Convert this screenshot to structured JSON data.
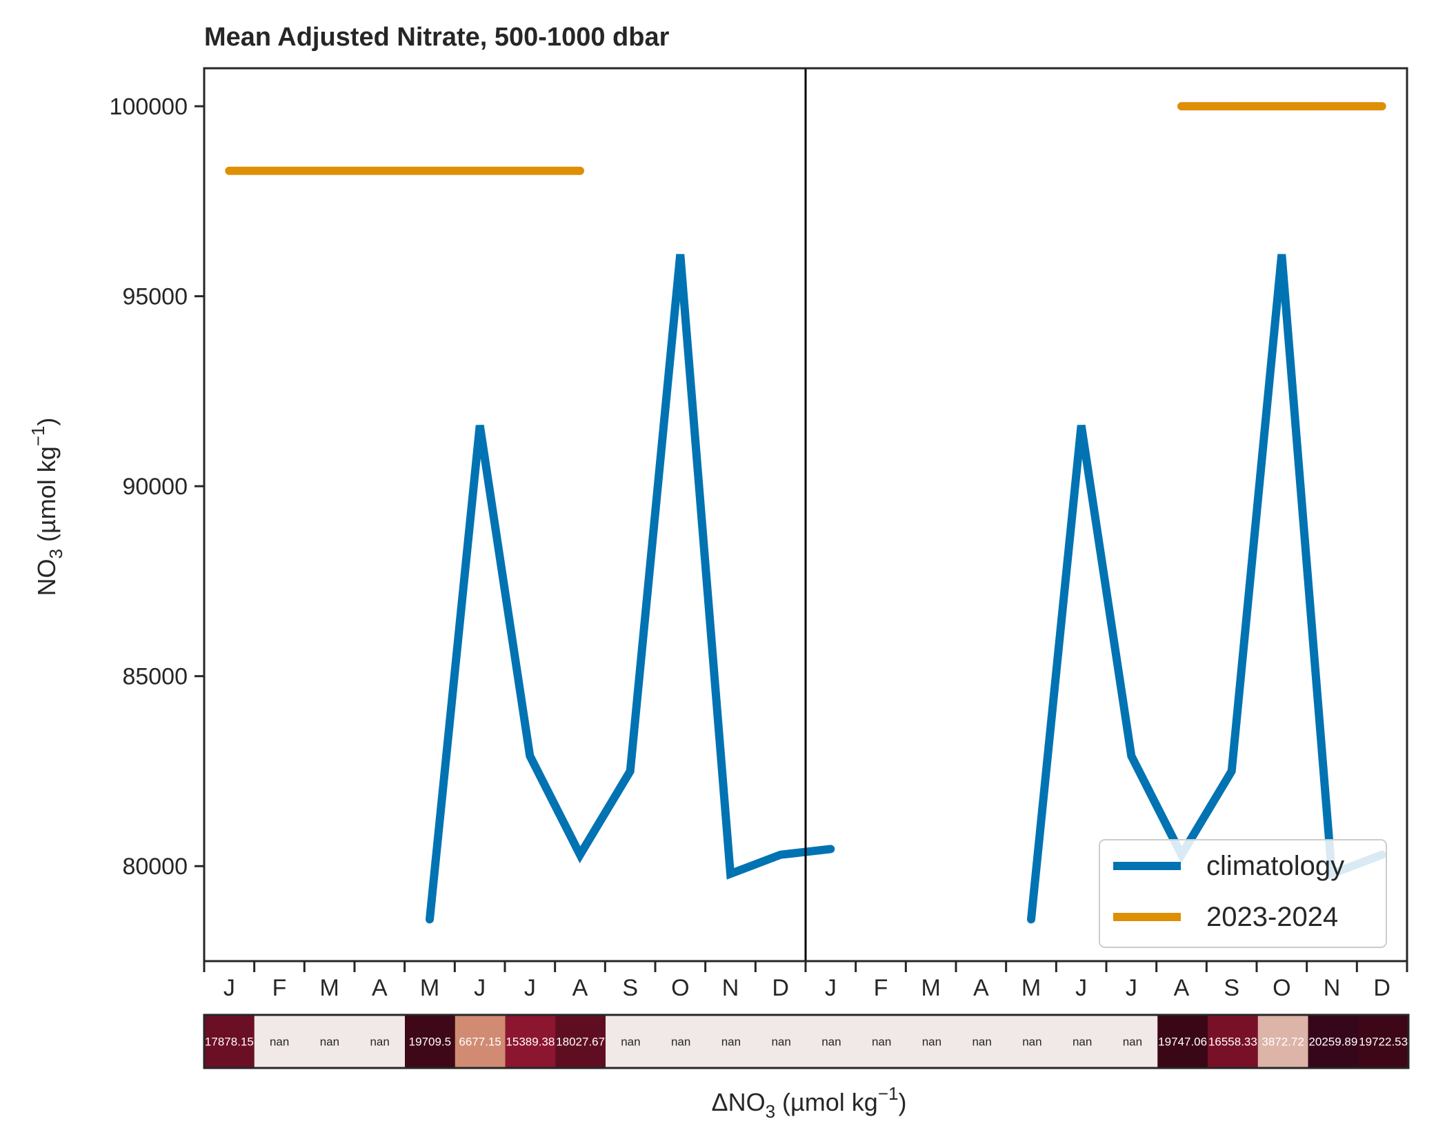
{
  "chart_data": {
    "type": "line",
    "title": "Mean Adjusted Nitrate, 500-1000 dbar",
    "ylabel": "NO3 (µmol kg−1)",
    "ylabel_parts": {
      "base": "NO",
      "sub": "3",
      "mid": " (µmol kg",
      "sup": "−1",
      "end": ")"
    },
    "xlabel": "ΔNO3 (µmol kg−1)",
    "xlabel_parts": {
      "base": "ΔNO",
      "sub": "3",
      "mid": " (µmol kg",
      "sup": "−1",
      "end": ")"
    },
    "ylim": [
      77500,
      101000
    ],
    "yticks": [
      80000,
      85000,
      90000,
      95000,
      100000
    ],
    "ytick_labels": [
      "80000",
      "85000",
      "90000",
      "95000",
      "100000"
    ],
    "xlim": [
      0,
      24
    ],
    "month_labels": [
      "J",
      "F",
      "M",
      "A",
      "M",
      "J",
      "J",
      "A",
      "S",
      "O",
      "N",
      "D",
      "J",
      "F",
      "M",
      "A",
      "M",
      "J",
      "J",
      "A",
      "S",
      "O",
      "N",
      "D"
    ],
    "year_divider": 12,
    "series": [
      {
        "name": "climatology",
        "color": "#0173b2",
        "points": [
          [
            4.5,
            78600
          ],
          [
            5.5,
            91600
          ],
          [
            6.5,
            82900
          ],
          [
            7.5,
            80300
          ],
          [
            8.5,
            82500
          ],
          [
            9.5,
            96100
          ],
          [
            10.5,
            79800
          ],
          [
            11.5,
            80300
          ],
          [
            12.5,
            80450
          ]
        ]
      },
      {
        "name": "climatology",
        "color": "#0173b2",
        "points": [
          [
            16.5,
            78600
          ],
          [
            17.5,
            91600
          ],
          [
            18.5,
            82900
          ],
          [
            19.5,
            80300
          ],
          [
            20.5,
            82500
          ],
          [
            21.5,
            96100
          ],
          [
            22.5,
            79800
          ],
          [
            23.5,
            80300
          ]
        ]
      },
      {
        "name": "2023-2024",
        "color": "#de8f05",
        "points": [
          [
            0.5,
            98300
          ],
          [
            7.5,
            98300
          ]
        ]
      },
      {
        "name": "2023-2024",
        "color": "#de8f05",
        "points": [
          [
            19.5,
            100000
          ],
          [
            23.5,
            100000
          ]
        ]
      }
    ],
    "legend": {
      "position": "lower-right",
      "entries": [
        {
          "label": "climatology",
          "color": "#0173b2"
        },
        {
          "label": "2023-2024",
          "color": "#de8f05"
        }
      ]
    },
    "anomaly_strip": {
      "cells": [
        {
          "text": "17878.15",
          "color": "#6b0f25",
          "text_color": "#ffffff"
        },
        {
          "text": "nan",
          "color": "#f1e8e8",
          "text_color": "#262626"
        },
        {
          "text": "nan",
          "color": "#f1e8e8",
          "text_color": "#262626"
        },
        {
          "text": "nan",
          "color": "#f1e8e8",
          "text_color": "#262626"
        },
        {
          "text": "19709.5",
          "color": "#3e0818",
          "text_color": "#ffffff"
        },
        {
          "text": "6677.15",
          "color": "#d08b72",
          "text_color": "#ffffff"
        },
        {
          "text": "15389.38",
          "color": "#8c1530",
          "text_color": "#ffffff"
        },
        {
          "text": "18027.67",
          "color": "#5f0e22",
          "text_color": "#ffffff"
        },
        {
          "text": "nan",
          "color": "#f1e8e8",
          "text_color": "#262626"
        },
        {
          "text": "nan",
          "color": "#f1e8e8",
          "text_color": "#262626"
        },
        {
          "text": "nan",
          "color": "#f1e8e8",
          "text_color": "#262626"
        },
        {
          "text": "nan",
          "color": "#f1e8e8",
          "text_color": "#262626"
        },
        {
          "text": "nan",
          "color": "#f1e8e8",
          "text_color": "#262626"
        },
        {
          "text": "nan",
          "color": "#f1e8e8",
          "text_color": "#262626"
        },
        {
          "text": "nan",
          "color": "#f1e8e8",
          "text_color": "#262626"
        },
        {
          "text": "nan",
          "color": "#f1e8e8",
          "text_color": "#262626"
        },
        {
          "text": "nan",
          "color": "#f1e8e8",
          "text_color": "#262626"
        },
        {
          "text": "nan",
          "color": "#f1e8e8",
          "text_color": "#262626"
        },
        {
          "text": "nan",
          "color": "#f1e8e8",
          "text_color": "#262626"
        },
        {
          "text": "19747.06",
          "color": "#3a0716",
          "text_color": "#ffffff"
        },
        {
          "text": "16558.33",
          "color": "#781128",
          "text_color": "#ffffff"
        },
        {
          "text": "3872.72",
          "color": "#dcb4a8",
          "text_color": "#ffffff"
        },
        {
          "text": "20259.89",
          "color": "#36061a",
          "text_color": "#ffffff"
        },
        {
          "text": "19722.53",
          "color": "#3d0718",
          "text_color": "#ffffff"
        }
      ]
    },
    "grid": false
  }
}
